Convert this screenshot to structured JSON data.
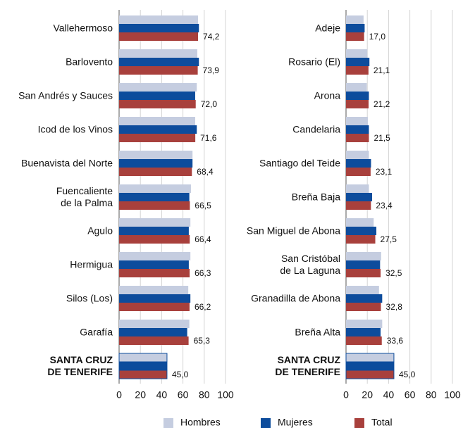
{
  "chart_data": [
    {
      "type": "bar",
      "orientation": "horizontal",
      "categories": [
        "Vallehermoso",
        "Barlovento",
        "San Andrés y Sauces",
        "Icod de los Vinos",
        "Buenavista del Norte",
        "Fuencaliente\nde la Palma",
        "Agulo",
        "Hermigua",
        "Silos (Los)",
        "Garafía",
        "SANTA CRUZ\nDE TENERIFE"
      ],
      "highlight_category": 10,
      "series": [
        {
          "name": "Hombres",
          "color": "#c5cde0",
          "values": [
            74.2,
            73.5,
            73,
            71.5,
            69,
            67.5,
            67,
            67,
            65,
            66,
            45
          ]
        },
        {
          "name": "Mujeres",
          "color": "#0d4c9c",
          "values": [
            75,
            75,
            71.5,
            73,
            69,
            66,
            65.5,
            65.5,
            67,
            64,
            45
          ]
        },
        {
          "name": "Total",
          "color": "#a8403c",
          "values": [
            74.2,
            73.9,
            72.0,
            71.6,
            68.4,
            66.5,
            66.4,
            66.3,
            66.2,
            65.3,
            45.0
          ],
          "value_labels": [
            "74,2",
            "73,9",
            "72,0",
            "71,6",
            "68,4",
            "66,5",
            "66,4",
            "66,3",
            "66,2",
            "65,3",
            "45,0"
          ]
        }
      ],
      "xlim": [
        0,
        100
      ],
      "xticks": [
        0,
        20,
        40,
        60,
        80,
        100
      ],
      "grid": true
    },
    {
      "type": "bar",
      "orientation": "horizontal",
      "categories": [
        "Adeje",
        "Rosario (El)",
        "Arona",
        "Candelaria",
        "Santiago del Teide",
        "Breña Baja",
        "San Miguel de Abona",
        "San Cristóbal\nde La Laguna",
        "Granadilla de Abona",
        "Breña Alta",
        "SANTA CRUZ\nDE TENERIFE"
      ],
      "highlight_category": 10,
      "series": [
        {
          "color": "#c5cde0",
          "values": [
            16.5,
            20,
            19.5,
            20.5,
            21.5,
            21.5,
            26,
            33,
            31,
            34,
            45
          ]
        },
        {
          "color": "#0d4c9c",
          "values": [
            17.5,
            22,
            21.5,
            21.5,
            23.5,
            24.5,
            28.5,
            32,
            34,
            32.5,
            45
          ]
        },
        {
          "color": "#a8403c",
          "values": [
            17.0,
            21.1,
            21.2,
            21.5,
            23.1,
            23.4,
            27.5,
            32.5,
            32.8,
            33.6,
            45.0
          ],
          "value_labels": [
            "17,0",
            "21,1",
            "21,2",
            "21,5",
            "23,1",
            "23,4",
            "27,5",
            "32,5",
            "32,8",
            "33,6",
            "45,0"
          ]
        }
      ],
      "xlim": [
        0,
        100
      ],
      "xticks": [
        0,
        20,
        40,
        60,
        80,
        100
      ],
      "grid": true
    }
  ]
}
